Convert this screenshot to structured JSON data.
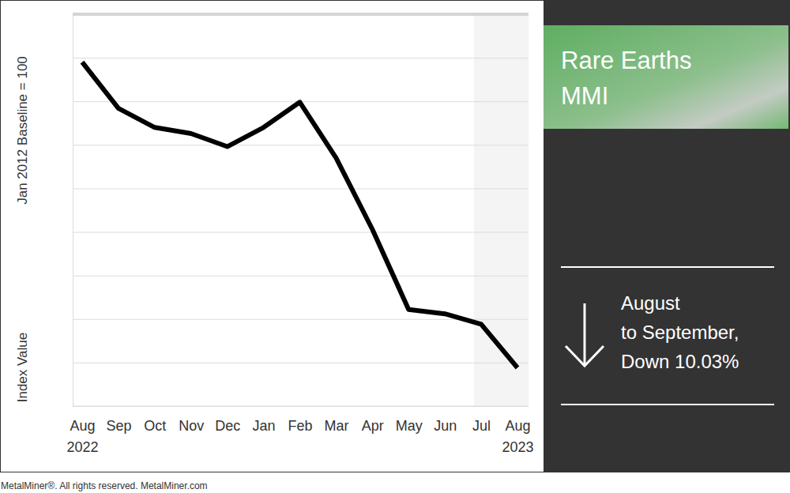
{
  "chart_data": {
    "type": "line",
    "title": "Rare Earths MMI",
    "ylabel": "Index Value",
    "baseline_label": "Jan 2012 Baseline = 100",
    "categories": [
      "Aug 2022",
      "Sep",
      "Oct",
      "Nov",
      "Dec",
      "Jan",
      "Feb",
      "Mar",
      "Apr",
      "May",
      "Jun",
      "Jul",
      "Aug 2023"
    ],
    "values": [
      79.5,
      74.2,
      72.0,
      71.3,
      69.8,
      72.0,
      74.9,
      68.5,
      60.3,
      51.1,
      50.6,
      49.4,
      44.4
    ],
    "color": "#000000",
    "ylim": [
      40,
      85
    ],
    "yticks": [
      40,
      45,
      50,
      55,
      60,
      65,
      70,
      75,
      80,
      85
    ],
    "grid": true,
    "tick_labels": "x",
    "annotation": [
      "August",
      "to September,",
      "Down 10.03%"
    ]
  },
  "footer": "MetalMiner®. All rights reserved. MetalMiner.com"
}
